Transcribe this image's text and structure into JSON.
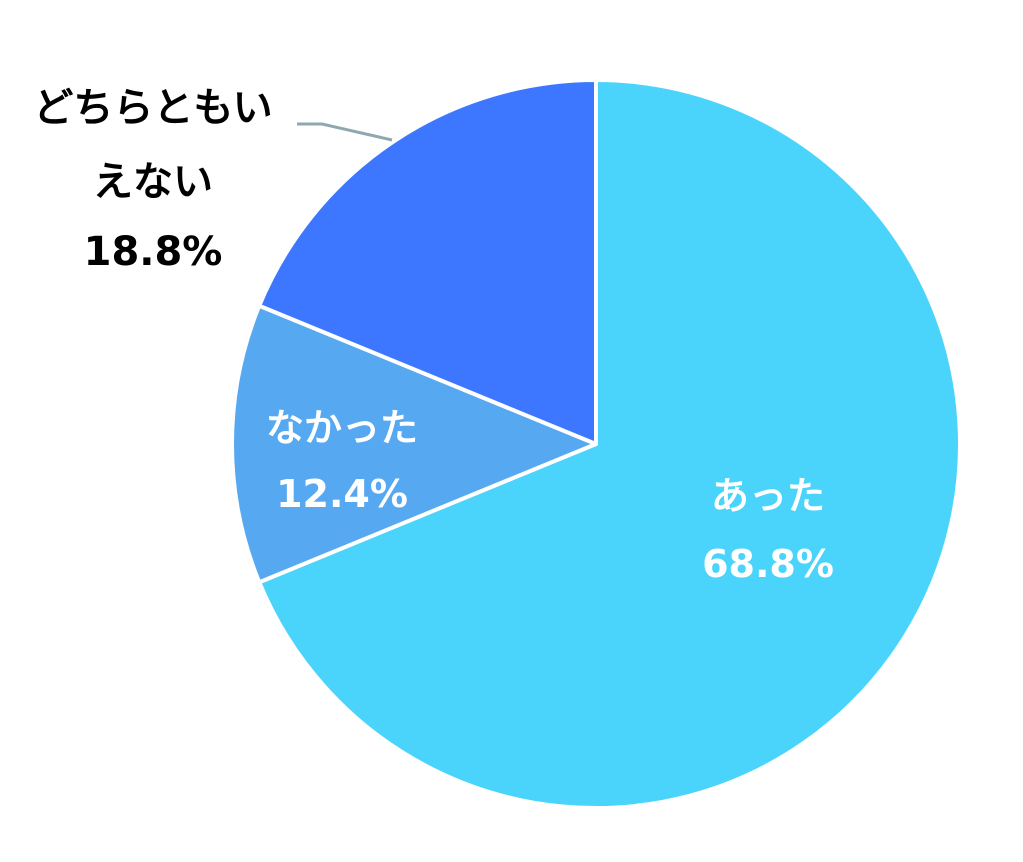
{
  "chart_data": {
    "type": "pie",
    "title": "",
    "start_angle": "12 o'clock, clockwise",
    "slices": [
      {
        "label": "あった",
        "value": 68.8,
        "value_label": "68.8%",
        "color": "#4AD4FB",
        "text_color": "#FFFFFF",
        "label_placement": "inside"
      },
      {
        "label": "なかった",
        "value": 12.4,
        "value_label": "12.4%",
        "color": "#56A8F1",
        "text_color": "#FFFFFF",
        "label_placement": "inside"
      },
      {
        "label": "どちらともいえない",
        "label_lines": [
          "どちらともい",
          "えない"
        ],
        "value": 18.8,
        "value_label": "18.8%",
        "color": "#3D77FF",
        "text_color": "#000000",
        "label_placement": "outside-top-left",
        "leader_line_color": "#8FA7AE"
      }
    ]
  }
}
